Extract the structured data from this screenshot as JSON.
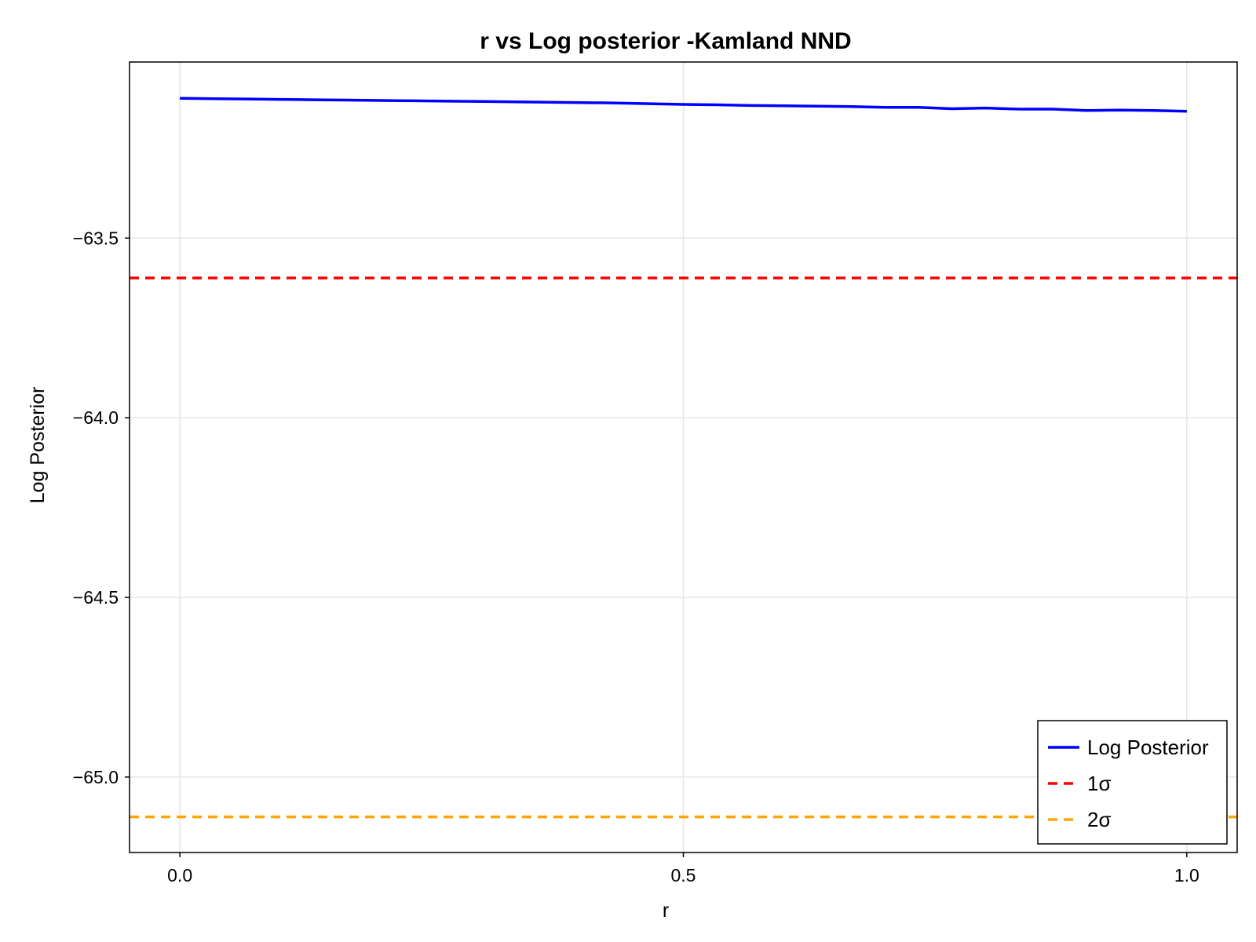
{
  "chart_data": {
    "type": "line",
    "title": "r vs Log posterior -Kamland NND",
    "xlabel": "r",
    "ylabel": "Log Posterior",
    "xlim": [
      -0.05,
      1.05
    ],
    "ylim": [
      -65.21,
      -63.01
    ],
    "xticks": [
      0.0,
      0.5,
      1.0
    ],
    "xtick_labels": [
      "0.0",
      "0.5",
      "1.0"
    ],
    "yticks": [
      -63.5,
      -64.0,
      -64.5,
      -65.0
    ],
    "ytick_labels": [
      "−63.5",
      "−64.0",
      "−64.5",
      "−65.0"
    ],
    "grid": true,
    "legend_position": "bottom-right",
    "series": [
      {
        "name": "Log Posterior",
        "color": "#0000ff",
        "style": "solid",
        "x": [
          0.0,
          0.0333,
          0.0667,
          0.1,
          0.1333,
          0.1667,
          0.2,
          0.2333,
          0.2667,
          0.3,
          0.3333,
          0.3667,
          0.4,
          0.4333,
          0.4667,
          0.5,
          0.5333,
          0.5667,
          0.6,
          0.6333,
          0.6667,
          0.7,
          0.7333,
          0.7667,
          0.8,
          0.8333,
          0.8667,
          0.9,
          0.9333,
          0.9667,
          1.0
        ],
        "y": [
          -63.111,
          -63.112,
          -63.113,
          -63.114,
          -63.115,
          -63.116,
          -63.117,
          -63.118,
          -63.119,
          -63.12,
          -63.121,
          -63.122,
          -63.123,
          -63.124,
          -63.126,
          -63.128,
          -63.129,
          -63.131,
          -63.132,
          -63.133,
          -63.134,
          -63.136,
          -63.136,
          -63.14,
          -63.138,
          -63.141,
          -63.141,
          -63.145,
          -63.144,
          -63.145,
          -63.147
        ]
      },
      {
        "name": "1σ",
        "color": "#ff0000",
        "style": "dashed",
        "hline": -63.611
      },
      {
        "name": "2σ",
        "color": "#ffa500",
        "style": "dashed",
        "hline": -65.111
      }
    ]
  }
}
